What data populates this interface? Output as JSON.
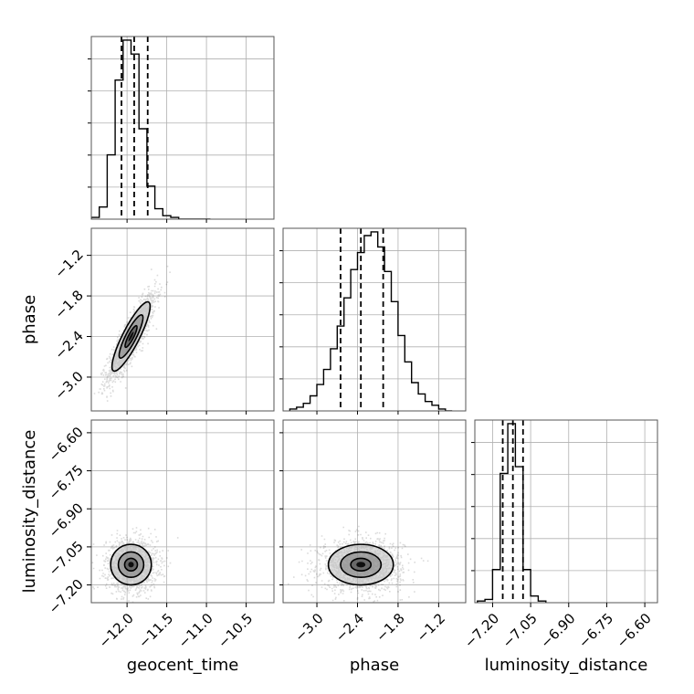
{
  "chart_data": {
    "type": "corner",
    "parameters": [
      {
        "name": "geocent_time",
        "range": [
          -12.45,
          -10.15
        ],
        "ticks": [
          -12.0,
          -11.5,
          -11.0,
          -10.5
        ],
        "tick_labels": [
          "−12.0",
          "−11.5",
          "−11.0",
          "−10.5"
        ],
        "quantiles": [
          -12.07,
          -11.91,
          -11.74
        ],
        "histogram": {
          "edges": [
            -12.45,
            -12.35,
            -12.25,
            -12.15,
            -12.05,
            -11.95,
            -11.85,
            -11.75,
            -11.65,
            -11.55,
            -11.45,
            -11.35,
            -11.25,
            -11.15,
            -11.05,
            -10.95
          ],
          "counts": [
            1,
            7,
            37,
            80,
            103,
            95,
            52,
            19,
            6,
            2,
            1,
            0,
            0,
            0,
            0
          ]
        }
      },
      {
        "name": "phase",
        "range": [
          -3.5,
          -0.8
        ],
        "ticks": [
          -3.0,
          -2.4,
          -1.8,
          -1.2
        ],
        "tick_labels": [
          "−3.0",
          "−2.4",
          "−1.8",
          "−1.2"
        ],
        "quantiles": [
          -2.65,
          -2.35,
          -2.02
        ],
        "histogram": {
          "edges": [
            -3.4,
            -3.3,
            -3.2,
            -3.1,
            -3.0,
            -2.9,
            -2.8,
            -2.7,
            -2.6,
            -2.5,
            -2.4,
            -2.3,
            -2.2,
            -2.1,
            -2.0,
            -1.9,
            -1.8,
            -1.7,
            -1.6,
            -1.5,
            -1.4,
            -1.3,
            -1.2,
            -1.1,
            -1.0
          ],
          "counts": [
            1,
            2,
            4,
            8,
            14,
            22,
            33,
            45,
            60,
            75,
            84,
            93,
            95,
            87,
            74,
            58,
            40,
            26,
            15,
            9,
            5,
            3,
            1,
            0
          ]
        }
      },
      {
        "name": "luminosity_distance",
        "range": [
          -7.27,
          -6.55
        ],
        "ticks": [
          -7.2,
          -7.05,
          -6.9,
          -6.75,
          -6.6
        ],
        "tick_labels": [
          "−7.20",
          "−7.05",
          "−6.90",
          "−6.75",
          "−6.60"
        ],
        "quantiles": [
          -7.16,
          -7.12,
          -7.08
        ],
        "histogram": {
          "edges": [
            -7.26,
            -7.23,
            -7.2,
            -7.17,
            -7.14,
            -7.11,
            -7.08,
            -7.05,
            -7.02,
            -6.99
          ],
          "counts": [
            1,
            2,
            20,
            78,
            108,
            82,
            20,
            4,
            1
          ]
        }
      }
    ],
    "pairs": [
      {
        "x": 0,
        "y": 1,
        "center": [
          -11.95,
          -2.4
        ],
        "sd": [
          0.15,
          0.32
        ],
        "corr": 0.87,
        "contour_levels": [
          0.5,
          1.0,
          1.6
        ],
        "scatter_count": 1500
      },
      {
        "x": 0,
        "y": 2,
        "center": [
          -11.95,
          -7.12
        ],
        "sd": [
          0.16,
          0.05
        ],
        "corr": 0.0,
        "contour_levels": [
          0.5,
          1.0,
          1.6
        ],
        "scatter_count": 1500
      },
      {
        "x": 1,
        "y": 2,
        "center": [
          -2.35,
          -7.12
        ],
        "sd": [
          0.3,
          0.05
        ],
        "corr": 0.0,
        "contour_levels": [
          0.5,
          1.0,
          1.6
        ],
        "scatter_count": 1500
      }
    ],
    "grid": true
  }
}
